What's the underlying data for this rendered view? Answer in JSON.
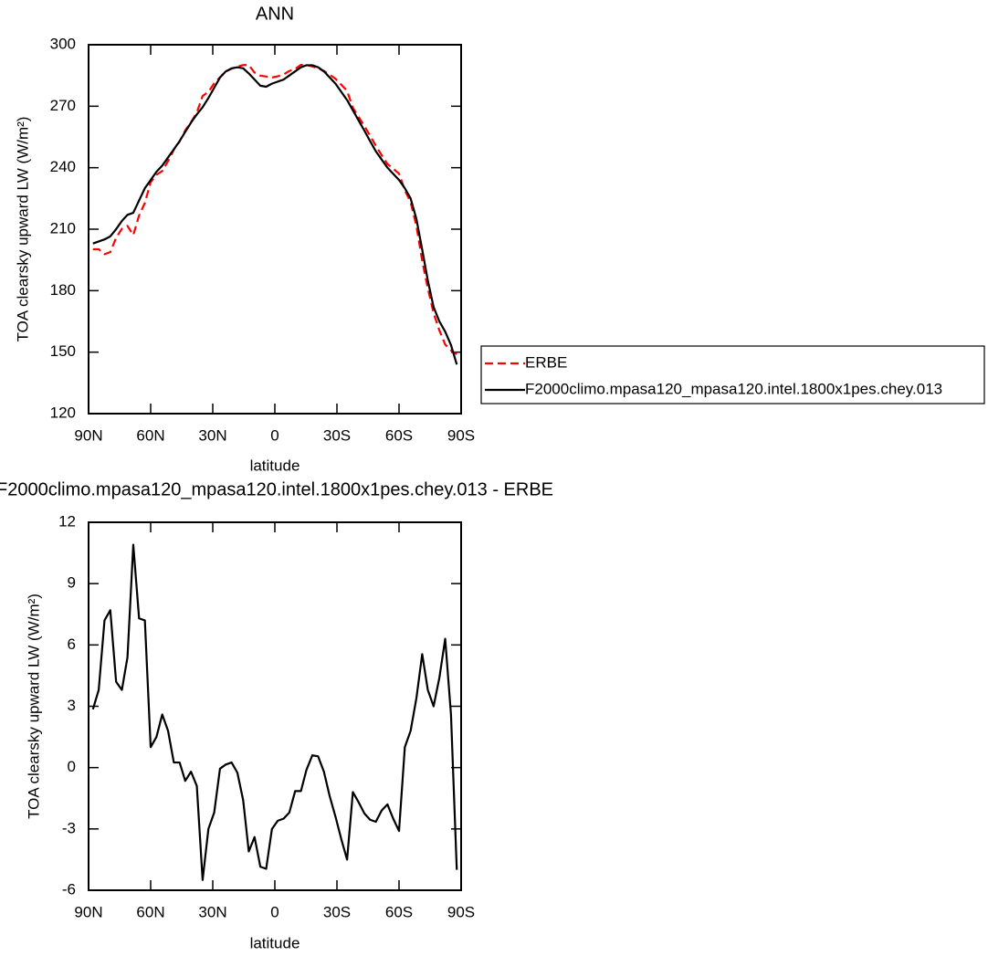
{
  "chart_data": [
    {
      "type": "line",
      "title": "ANN",
      "xlabel": "latitude",
      "ylabel": "TOA clearsky upward LW (W/m²)",
      "x": [
        87.9,
        85.1,
        82.3,
        79.5,
        76.7,
        73.9,
        71.2,
        68.4,
        65.6,
        62.8,
        60.0,
        57.2,
        54.4,
        51.6,
        48.8,
        46.0,
        43.3,
        40.5,
        37.7,
        34.9,
        32.1,
        29.3,
        26.5,
        23.7,
        20.9,
        18.1,
        15.3,
        12.6,
        9.8,
        7.0,
        4.2,
        1.4,
        -1.4,
        -4.2,
        -7.0,
        -9.8,
        -12.6,
        -15.3,
        -18.1,
        -20.9,
        -23.7,
        -26.5,
        -29.3,
        -32.1,
        -34.9,
        -37.7,
        -40.5,
        -43.3,
        -46.0,
        -48.8,
        -51.6,
        -54.4,
        -57.2,
        -60.0,
        -62.8,
        -65.6,
        -68.4,
        -71.2,
        -73.9,
        -76.7,
        -79.5,
        -82.3,
        -85.1,
        -87.9
      ],
      "series": [
        {
          "name": "ERBE",
          "color": "#ff0000",
          "linestyle": "dashed",
          "values": [
            200.2,
            200.2,
            197.8,
            198.8,
            205.8,
            210.2,
            211.6,
            207.1,
            216.7,
            222.8,
            233.0,
            236.5,
            238.4,
            243.2,
            248.8,
            252.8,
            258.2,
            262.2,
            266.9,
            275.0,
            277.0,
            281.2,
            284.1,
            286.9,
            288.3,
            289.3,
            290.1,
            290.1,
            286.4,
            284.9,
            284.5,
            284.0,
            284.6,
            285.5,
            287.2,
            288.2,
            290.2,
            290.1,
            289.4,
            288.5,
            287.2,
            285.4,
            283.4,
            280.5,
            277.5,
            269.2,
            264.7,
            260.3,
            255.6,
            250.7,
            246.1,
            241.8,
            239.5,
            237.1,
            229.0,
            223.2,
            211.6,
            194.5,
            181.2,
            169.0,
            160.6,
            153.7,
            150.9,
            149.0
          ]
        },
        {
          "name": "F2000climo.mpasa120_mpasa120.intel.1800x1pes.chey.013",
          "color": "#000000",
          "linestyle": "solid",
          "values": [
            203.0,
            204.0,
            205.0,
            206.5,
            210.0,
            214.0,
            217.0,
            218.0,
            224.0,
            230.0,
            234.0,
            238.0,
            241.0,
            245.0,
            249.0,
            253.0,
            257.5,
            262.0,
            266.0,
            269.5,
            274.0,
            279.0,
            284.0,
            287.0,
            288.5,
            289.0,
            288.5,
            286.0,
            283.0,
            280.0,
            279.5,
            281.0,
            282.0,
            283.0,
            285.0,
            287.0,
            289.0,
            290.0,
            290.0,
            289.0,
            287.0,
            284.0,
            281.0,
            277.0,
            273.0,
            268.0,
            263.0,
            258.0,
            253.0,
            248.0,
            244.0,
            240.0,
            237.0,
            234.0,
            230.0,
            225.0,
            215.0,
            200.0,
            185.0,
            172.0,
            165.0,
            160.0,
            153.5,
            144.0
          ]
        }
      ],
      "xlim": [
        90,
        -90
      ],
      "xticks": [
        {
          "value": 90,
          "label": "90N"
        },
        {
          "value": 60,
          "label": "60N"
        },
        {
          "value": 30,
          "label": "30N"
        },
        0,
        {
          "value": -30,
          "label": "30S"
        },
        {
          "value": -60,
          "label": "60S"
        },
        {
          "value": -90,
          "label": "90S"
        }
      ],
      "ylim": [
        120,
        300
      ],
      "yticks": [
        120,
        150,
        180,
        210,
        240,
        270,
        300
      ],
      "legend": "right"
    },
    {
      "type": "line",
      "title": "F2000climo.mpasa120_mpasa120.intel.1800x1pes.chey.013 - ERBE",
      "xlabel": "latitude",
      "ylabel": "TOA clearsky upward LW (W/m²)",
      "x": [
        87.9,
        85.1,
        82.3,
        79.5,
        76.7,
        73.9,
        71.2,
        68.4,
        65.6,
        62.8,
        60.0,
        57.2,
        54.4,
        51.6,
        48.8,
        46.0,
        43.3,
        40.5,
        37.7,
        34.9,
        32.1,
        29.3,
        26.5,
        23.7,
        20.9,
        18.1,
        15.3,
        12.6,
        9.8,
        7.0,
        4.2,
        1.4,
        -1.4,
        -4.2,
        -7.0,
        -9.8,
        -12.6,
        -15.3,
        -18.1,
        -20.9,
        -23.7,
        -26.5,
        -29.3,
        -32.1,
        -34.9,
        -37.7,
        -40.5,
        -43.3,
        -46.0,
        -48.8,
        -51.6,
        -54.4,
        -57.2,
        -60.0,
        -62.8,
        -65.6,
        -68.4,
        -71.2,
        -73.9,
        -76.7,
        -79.5,
        -82.3,
        -85.1,
        -87.9
      ],
      "values": [
        2.85,
        3.8,
        7.2,
        7.7,
        4.2,
        3.8,
        5.4,
        10.9,
        7.3,
        7.2,
        1.0,
        1.5,
        2.6,
        1.8,
        0.25,
        0.25,
        -0.65,
        -0.2,
        -0.9,
        -5.5,
        -3.0,
        -2.2,
        -0.05,
        0.15,
        0.25,
        -0.25,
        -1.6,
        -4.1,
        -3.4,
        -4.85,
        -4.95,
        -3.0,
        -2.6,
        -2.5,
        -2.2,
        -1.15,
        -1.15,
        -0.1,
        0.6,
        0.55,
        -0.2,
        -1.4,
        -2.4,
        -3.5,
        -4.5,
        -1.2,
        -1.7,
        -2.25,
        -2.55,
        -2.65,
        -2.1,
        -1.8,
        -2.5,
        -3.1,
        1.0,
        1.8,
        3.4,
        5.55,
        3.8,
        3.0,
        4.4,
        6.3,
        2.6,
        -5.0
      ],
      "color": "#000000",
      "xlim": [
        90,
        -90
      ],
      "xticks": [
        {
          "value": 90,
          "label": "90N"
        },
        {
          "value": 60,
          "label": "60N"
        },
        {
          "value": 30,
          "label": "30N"
        },
        0,
        {
          "value": -30,
          "label": "30S"
        },
        {
          "value": -60,
          "label": "60S"
        },
        {
          "value": -90,
          "label": "90S"
        }
      ],
      "ylim": [
        -6,
        12
      ],
      "yticks": [
        -6,
        -3,
        0,
        3,
        6,
        9,
        12
      ]
    }
  ]
}
